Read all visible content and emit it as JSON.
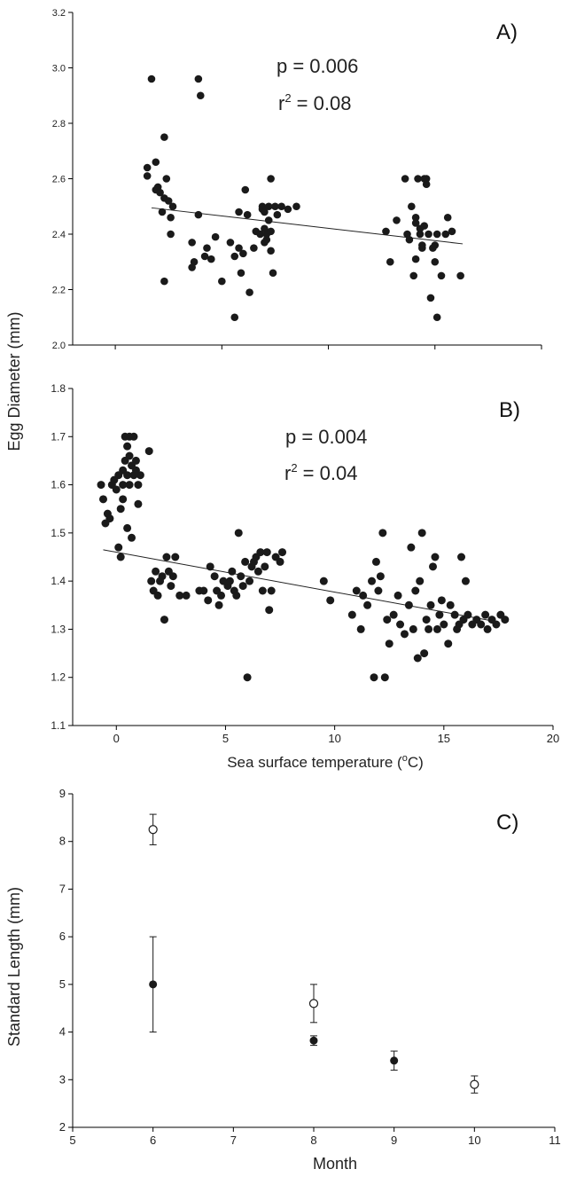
{
  "chart_data": [
    {
      "panel": "A)",
      "type": "scatter",
      "ylim": [
        2.0,
        3.2
      ],
      "yticks": [
        2.0,
        2.2,
        2.4,
        2.6,
        2.8,
        3.0,
        3.2
      ],
      "xlim": [
        -2,
        20
      ],
      "xticks": [
        0,
        5,
        10,
        15,
        20
      ],
      "stats": {
        "p": "p  = 0.006",
        "r2_prefix": "r",
        "r2_sup": "2",
        "r2_value": " = 0.08"
      },
      "regression": {
        "x": [
          1.7,
          16.3
        ],
        "y": [
          2.495,
          2.365
        ]
      },
      "points": [
        [
          1.7,
          2.96
        ],
        [
          1.5,
          2.64
        ],
        [
          1.5,
          2.61
        ],
        [
          1.9,
          2.66
        ],
        [
          2.0,
          2.57
        ],
        [
          1.9,
          2.56
        ],
        [
          2.1,
          2.55
        ],
        [
          2.2,
          2.48
        ],
        [
          2.3,
          2.75
        ],
        [
          2.4,
          2.6
        ],
        [
          2.3,
          2.53
        ],
        [
          2.5,
          2.52
        ],
        [
          2.6,
          2.46
        ],
        [
          2.6,
          2.4
        ],
        [
          2.7,
          2.5
        ],
        [
          2.3,
          2.23
        ],
        [
          3.9,
          2.96
        ],
        [
          4.0,
          2.9
        ],
        [
          3.9,
          2.47
        ],
        [
          3.6,
          2.37
        ],
        [
          3.7,
          2.3
        ],
        [
          3.6,
          2.28
        ],
        [
          4.2,
          2.32
        ],
        [
          4.3,
          2.35
        ],
        [
          4.5,
          2.31
        ],
        [
          4.7,
          2.39
        ],
        [
          5.0,
          2.23
        ],
        [
          5.4,
          2.37
        ],
        [
          5.6,
          2.32
        ],
        [
          5.6,
          2.1
        ],
        [
          5.8,
          2.35
        ],
        [
          5.8,
          2.48
        ],
        [
          5.9,
          2.26
        ],
        [
          6.0,
          2.33
        ],
        [
          6.1,
          2.56
        ],
        [
          6.2,
          2.47
        ],
        [
          6.3,
          2.19
        ],
        [
          6.5,
          2.35
        ],
        [
          6.6,
          2.41
        ],
        [
          6.8,
          2.4
        ],
        [
          6.9,
          2.5
        ],
        [
          6.9,
          2.49
        ],
        [
          7.0,
          2.48
        ],
        [
          7.0,
          2.42
        ],
        [
          7.0,
          2.37
        ],
        [
          7.1,
          2.4
        ],
        [
          7.1,
          2.38
        ],
        [
          7.2,
          2.5
        ],
        [
          7.2,
          2.45
        ],
        [
          7.3,
          2.6
        ],
        [
          7.3,
          2.41
        ],
        [
          7.3,
          2.34
        ],
        [
          7.4,
          2.26
        ],
        [
          7.5,
          2.5
        ],
        [
          7.6,
          2.47
        ],
        [
          7.8,
          2.5
        ],
        [
          8.1,
          2.49
        ],
        [
          8.5,
          2.5
        ],
        [
          12.7,
          2.41
        ],
        [
          12.9,
          2.3
        ],
        [
          13.2,
          2.45
        ],
        [
          13.6,
          2.6
        ],
        [
          13.7,
          2.4
        ],
        [
          13.8,
          2.38
        ],
        [
          13.9,
          2.5
        ],
        [
          14.0,
          2.25
        ],
        [
          14.1,
          2.46
        ],
        [
          14.1,
          2.44
        ],
        [
          14.1,
          2.31
        ],
        [
          14.2,
          2.6
        ],
        [
          14.3,
          2.42
        ],
        [
          14.3,
          2.4
        ],
        [
          14.4,
          2.36
        ],
        [
          14.4,
          2.35
        ],
        [
          14.5,
          2.6
        ],
        [
          14.5,
          2.43
        ],
        [
          14.6,
          2.6
        ],
        [
          14.6,
          2.58
        ],
        [
          14.7,
          2.4
        ],
        [
          14.8,
          2.17
        ],
        [
          14.9,
          2.35
        ],
        [
          15.0,
          2.3
        ],
        [
          15.1,
          2.1
        ],
        [
          15.0,
          2.36
        ],
        [
          15.1,
          2.4
        ],
        [
          15.3,
          2.25
        ],
        [
          15.5,
          2.4
        ],
        [
          15.6,
          2.46
        ],
        [
          15.8,
          2.41
        ],
        [
          16.2,
          2.25
        ]
      ]
    },
    {
      "panel": "B)",
      "type": "scatter",
      "ylim": [
        1.1,
        1.8
      ],
      "yticks": [
        1.1,
        1.2,
        1.3,
        1.4,
        1.5,
        1.6,
        1.7,
        1.8
      ],
      "xlim": [
        -2,
        20
      ],
      "xticks": [
        0,
        5,
        10,
        15,
        20
      ],
      "xlabel_main": "Sea surface temperature (",
      "xlabel_sup": "o",
      "xlabel_tail": "C)",
      "stats": {
        "p": "p  = 0.004",
        "r2_prefix": "r",
        "r2_sup": "2",
        "r2_value": " = 0.04"
      },
      "regression": {
        "x": [
          -0.6,
          17.5
        ],
        "y": [
          1.465,
          1.315
        ]
      },
      "points": [
        [
          -0.7,
          1.6
        ],
        [
          -0.6,
          1.57
        ],
        [
          -0.5,
          1.52
        ],
        [
          -0.4,
          1.54
        ],
        [
          -0.3,
          1.53
        ],
        [
          -0.2,
          1.6
        ],
        [
          -0.1,
          1.61
        ],
        [
          0.0,
          1.59
        ],
        [
          0.1,
          1.62
        ],
        [
          0.1,
          1.47
        ],
        [
          0.2,
          1.45
        ],
        [
          0.2,
          1.55
        ],
        [
          0.3,
          1.57
        ],
        [
          0.3,
          1.6
        ],
        [
          0.3,
          1.63
        ],
        [
          0.4,
          1.65
        ],
        [
          0.4,
          1.7
        ],
        [
          0.5,
          1.68
        ],
        [
          0.5,
          1.62
        ],
        [
          0.5,
          1.51
        ],
        [
          0.6,
          1.7
        ],
        [
          0.6,
          1.66
        ],
        [
          0.6,
          1.6
        ],
        [
          0.7,
          1.64
        ],
        [
          0.7,
          1.49
        ],
        [
          0.8,
          1.62
        ],
        [
          0.8,
          1.7
        ],
        [
          0.9,
          1.65
        ],
        [
          0.9,
          1.63
        ],
        [
          1.0,
          1.6
        ],
        [
          1.0,
          1.56
        ],
        [
          1.1,
          1.62
        ],
        [
          1.5,
          1.67
        ],
        [
          1.6,
          1.4
        ],
        [
          1.7,
          1.38
        ],
        [
          1.8,
          1.42
        ],
        [
          1.9,
          1.37
        ],
        [
          2.0,
          1.4
        ],
        [
          2.1,
          1.41
        ],
        [
          2.2,
          1.32
        ],
        [
          2.3,
          1.45
        ],
        [
          2.4,
          1.42
        ],
        [
          2.5,
          1.39
        ],
        [
          2.6,
          1.41
        ],
        [
          2.7,
          1.45
        ],
        [
          2.9,
          1.37
        ],
        [
          3.2,
          1.37
        ],
        [
          3.8,
          1.38
        ],
        [
          4.0,
          1.38
        ],
        [
          4.2,
          1.36
        ],
        [
          4.3,
          1.43
        ],
        [
          4.5,
          1.41
        ],
        [
          4.6,
          1.38
        ],
        [
          4.7,
          1.35
        ],
        [
          4.8,
          1.37
        ],
        [
          4.9,
          1.4
        ],
        [
          5.1,
          1.39
        ],
        [
          5.2,
          1.4
        ],
        [
          5.3,
          1.42
        ],
        [
          5.4,
          1.38
        ],
        [
          5.5,
          1.37
        ],
        [
          5.6,
          1.5
        ],
        [
          5.7,
          1.41
        ],
        [
          5.8,
          1.39
        ],
        [
          5.9,
          1.44
        ],
        [
          6.0,
          1.2
        ],
        [
          6.1,
          1.4
        ],
        [
          6.2,
          1.43
        ],
        [
          6.3,
          1.44
        ],
        [
          6.4,
          1.45
        ],
        [
          6.5,
          1.42
        ],
        [
          6.6,
          1.46
        ],
        [
          6.7,
          1.38
        ],
        [
          6.8,
          1.43
        ],
        [
          6.9,
          1.46
        ],
        [
          7.0,
          1.34
        ],
        [
          7.1,
          1.38
        ],
        [
          7.3,
          1.45
        ],
        [
          7.5,
          1.44
        ],
        [
          7.6,
          1.46
        ],
        [
          9.5,
          1.4
        ],
        [
          9.8,
          1.36
        ],
        [
          10.8,
          1.33
        ],
        [
          11.0,
          1.38
        ],
        [
          11.2,
          1.3
        ],
        [
          11.3,
          1.37
        ],
        [
          11.5,
          1.35
        ],
        [
          11.7,
          1.4
        ],
        [
          11.8,
          1.2
        ],
        [
          11.9,
          1.44
        ],
        [
          12.0,
          1.38
        ],
        [
          12.1,
          1.41
        ],
        [
          12.2,
          1.5
        ],
        [
          12.3,
          1.2
        ],
        [
          12.4,
          1.32
        ],
        [
          12.5,
          1.27
        ],
        [
          12.7,
          1.33
        ],
        [
          12.9,
          1.37
        ],
        [
          13.0,
          1.31
        ],
        [
          13.2,
          1.29
        ],
        [
          13.4,
          1.35
        ],
        [
          13.5,
          1.47
        ],
        [
          13.6,
          1.3
        ],
        [
          13.7,
          1.38
        ],
        [
          13.8,
          1.24
        ],
        [
          13.9,
          1.4
        ],
        [
          14.0,
          1.5
        ],
        [
          14.1,
          1.25
        ],
        [
          14.2,
          1.32
        ],
        [
          14.3,
          1.3
        ],
        [
          14.4,
          1.35
        ],
        [
          14.5,
          1.43
        ],
        [
          14.6,
          1.45
        ],
        [
          14.7,
          1.3
        ],
        [
          14.8,
          1.33
        ],
        [
          14.9,
          1.36
        ],
        [
          15.0,
          1.31
        ],
        [
          15.2,
          1.27
        ],
        [
          15.3,
          1.35
        ],
        [
          15.5,
          1.33
        ],
        [
          15.6,
          1.3
        ],
        [
          15.7,
          1.31
        ],
        [
          15.8,
          1.45
        ],
        [
          15.9,
          1.32
        ],
        [
          16.0,
          1.4
        ],
        [
          16.1,
          1.33
        ],
        [
          16.3,
          1.31
        ],
        [
          16.5,
          1.32
        ],
        [
          16.7,
          1.31
        ],
        [
          16.9,
          1.33
        ],
        [
          17.0,
          1.3
        ],
        [
          17.2,
          1.32
        ],
        [
          17.4,
          1.31
        ],
        [
          17.6,
          1.33
        ],
        [
          17.8,
          1.32
        ]
      ]
    },
    {
      "panel": "C)",
      "type": "scatter",
      "xlabel": "Month",
      "ylabel": "Standard Length (mm)",
      "xlim": [
        5,
        11
      ],
      "xticks": [
        5,
        6,
        7,
        8,
        9,
        10,
        11
      ],
      "ylim": [
        2,
        9
      ],
      "yticks": [
        2,
        3,
        4,
        5,
        6,
        7,
        8,
        9
      ],
      "series": [
        {
          "marker": "open",
          "points": [
            {
              "x": 6,
              "y": 8.25,
              "err": 0.32
            },
            {
              "x": 8,
              "y": 4.6,
              "err": 0.4
            },
            {
              "x": 10,
              "y": 2.9,
              "err": 0.18
            }
          ]
        },
        {
          "marker": "filled",
          "points": [
            {
              "x": 6,
              "y": 5.0,
              "err": 1.0
            },
            {
              "x": 8,
              "y": 3.82,
              "err": 0.1
            },
            {
              "x": 9,
              "y": 3.4,
              "err": 0.2
            }
          ]
        }
      ]
    }
  ],
  "shared_ylabel": "Egg Diameter (mm)"
}
